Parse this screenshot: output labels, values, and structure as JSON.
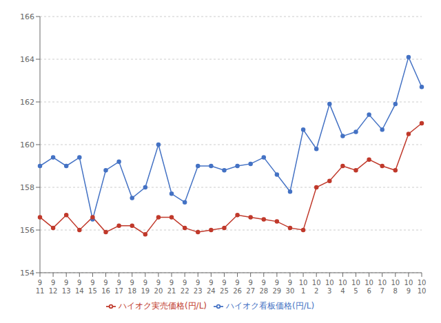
{
  "chart_data": {
    "type": "line",
    "categories": [
      "9\n11",
      "9\n12",
      "9\n13",
      "9\n14",
      "9\n15",
      "9\n16",
      "9\n17",
      "9\n18",
      "9\n19",
      "9\n20",
      "9\n21",
      "9\n22",
      "9\n23",
      "9\n24",
      "9\n25",
      "9\n26",
      "9\n27",
      "9\n28",
      "9\n29",
      "9\n30",
      "10\n1",
      "10\n2",
      "10\n3",
      "10\n4",
      "10\n5",
      "10\n6",
      "10\n7",
      "10\n8",
      "10\n9",
      "10\n10"
    ],
    "series": [
      {
        "name": "ハイオク看板価格(円/L)",
        "color": "#4472C4",
        "marker": "circle",
        "values": [
          159.0,
          159.4,
          159.0,
          159.4,
          156.5,
          158.8,
          159.2,
          157.5,
          158.0,
          160.0,
          157.7,
          157.3,
          159.0,
          159.0,
          158.8,
          159.0,
          159.1,
          159.4,
          158.6,
          157.8,
          160.7,
          159.8,
          161.9,
          160.4,
          160.6,
          161.4,
          160.7,
          161.9,
          164.1,
          162.7
        ]
      },
      {
        "name": "ハイオク実売価格(円/L)",
        "color": "#C0392B",
        "marker": "circle",
        "values": [
          156.6,
          156.1,
          156.7,
          156.0,
          156.6,
          155.9,
          156.2,
          156.2,
          155.8,
          156.6,
          156.6,
          156.1,
          155.9,
          156.0,
          156.1,
          156.7,
          156.6,
          156.5,
          156.4,
          156.1,
          156.0,
          158.0,
          158.3,
          159.0,
          158.8,
          159.3,
          159.0,
          158.8,
          160.5,
          161.0
        ]
      }
    ],
    "ylim": [
      154,
      166
    ],
    "yticks": [
      154,
      156,
      158,
      160,
      162,
      164,
      166
    ],
    "grid": true,
    "legend": "bottom"
  }
}
